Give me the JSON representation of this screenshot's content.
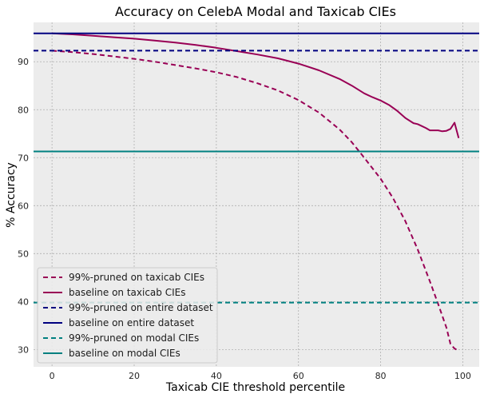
{
  "chart_data": {
    "type": "line",
    "title": "Accuracy on CelebA Modal and Taxicab CIEs",
    "xlabel": "Taxicab CIE threshold percentile",
    "ylabel": "% Accuracy",
    "xlim": [
      -4.5,
      104
    ],
    "ylim": [
      26.4,
      98.2
    ],
    "xticks": [
      0,
      20,
      40,
      60,
      80,
      100
    ],
    "yticks": [
      30,
      40,
      50,
      60,
      70,
      80,
      90
    ],
    "grid": true,
    "legend_location": "lower-left",
    "series": [
      {
        "name": "99%-pruned on taxicab CIEs",
        "color": "#990055",
        "style": "dashed",
        "x": [
          0,
          5,
          10,
          15,
          20,
          25,
          30,
          35,
          40,
          45,
          50,
          55,
          60,
          65,
          70,
          73,
          76,
          80,
          83,
          86,
          89,
          92,
          94,
          96,
          97,
          98,
          99
        ],
        "y": [
          92.3,
          92.0,
          91.6,
          91.1,
          90.6,
          90.0,
          89.3,
          88.6,
          87.8,
          86.8,
          85.5,
          84.0,
          82.0,
          79.4,
          75.9,
          73.2,
          70.0,
          65.6,
          61.6,
          56.8,
          50.9,
          44.2,
          39.5,
          34.6,
          31.2,
          30.2,
          29.8
        ]
      },
      {
        "name": "baseline on taxicab CIEs",
        "color": "#990055",
        "style": "solid",
        "x": [
          0,
          5,
          10,
          15,
          20,
          25,
          30,
          35,
          40,
          45,
          50,
          55,
          60,
          65,
          70,
          73,
          76,
          78,
          80,
          82,
          84,
          86,
          88,
          89,
          90,
          91,
          92,
          93,
          94,
          95,
          96,
          97,
          98,
          99
        ],
        "y": [
          95.9,
          95.7,
          95.4,
          95.1,
          94.8,
          94.4,
          94.0,
          93.5,
          92.9,
          92.2,
          91.5,
          90.7,
          89.6,
          88.2,
          86.4,
          85.0,
          83.4,
          82.6,
          81.9,
          81.0,
          79.8,
          78.3,
          77.2,
          77.0,
          76.6,
          76.2,
          75.7,
          75.7,
          75.7,
          75.5,
          75.6,
          76.0,
          77.3,
          74.1
        ]
      },
      {
        "name": "99%-pruned on entire dataset",
        "color": "#000080",
        "style": "dashed",
        "hline": 92.3
      },
      {
        "name": "baseline on entire dataset",
        "color": "#000080",
        "style": "solid",
        "hline": 95.9
      },
      {
        "name": "99%-pruned on modal CIEs",
        "color": "#008080",
        "style": "dashed",
        "hline": 39.8
      },
      {
        "name": "baseline on modal CIEs",
        "color": "#008080",
        "style": "solid",
        "hline": 71.3
      }
    ]
  }
}
